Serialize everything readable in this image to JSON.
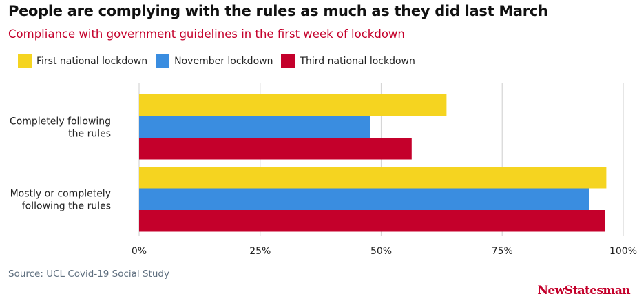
{
  "title": "People are complying with the rules as much as they did last March",
  "subtitle": "Compliance with government guidelines in the first week of lockdown",
  "source": "Source: UCL Covid-19 Social Study",
  "brand": "NewStatesman",
  "colors": {
    "title": "#111111",
    "accent": "#c4002b",
    "grid": "#d6d6d6"
  },
  "chart_data": {
    "type": "bar",
    "orientation": "horizontal",
    "title": "People are complying with the rules as much as they did last March",
    "subtitle": "Compliance with government guidelines in the first week of lockdown",
    "categories": [
      [
        "Completely following",
        "the rules"
      ],
      [
        "Mostly or completely",
        "following the rules"
      ]
    ],
    "series": [
      {
        "name": "First national lockdown",
        "color": "#f5d420",
        "values": [
          63.5,
          96.5
        ]
      },
      {
        "name": "November lockdown",
        "color": "#3a8de0",
        "values": [
          47.7,
          93.0
        ]
      },
      {
        "name": "Third national lockdown",
        "color": "#c4002b",
        "values": [
          56.3,
          96.2
        ]
      }
    ],
    "xlim": [
      0,
      100
    ],
    "xticks": [
      0,
      25,
      50,
      75,
      100
    ],
    "xtick_labels": [
      "0%",
      "25%",
      "50%",
      "75%",
      "100%"
    ],
    "grid": true,
    "legend": "top-left",
    "xlabel": "",
    "ylabel": ""
  }
}
